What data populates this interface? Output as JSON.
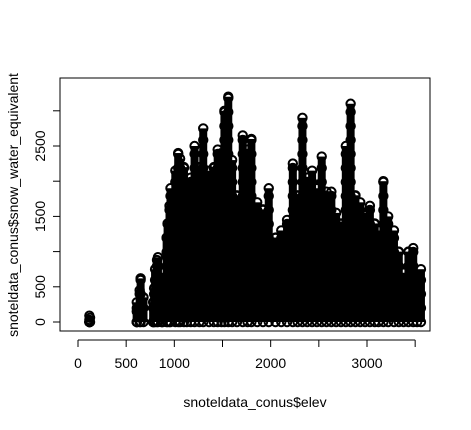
{
  "chart_data": {
    "type": "scatter",
    "title": "",
    "xlabel": "snoteldata_conus$elev",
    "ylabel": "snoteldata_conus$snow_water_equivalent",
    "xlim": [
      0,
      3650
    ],
    "ylim": [
      0,
      3200
    ],
    "x_ticks": [
      0,
      500,
      1000,
      1500,
      2000,
      2500,
      3000,
      3500
    ],
    "x_tick_labels": [
      "0",
      "500",
      "1000",
      "",
      "2000",
      "",
      "3000",
      ""
    ],
    "y_ticks": [
      0,
      500,
      1000,
      1500,
      2000,
      2500,
      3000
    ],
    "y_tick_labels": [
      "0",
      "500",
      "",
      "1500",
      "",
      "2500",
      ""
    ],
    "grid": false,
    "marker": "open-circle",
    "color": "#000000",
    "series": [
      {
        "points": [
          [
            118,
            0
          ],
          [
            118,
            30
          ],
          [
            125,
            60
          ],
          [
            118,
            90
          ],
          [
            610,
            0
          ],
          [
            610,
            150
          ],
          [
            610,
            280
          ],
          [
            640,
            450
          ],
          [
            650,
            620
          ],
          [
            680,
            350
          ],
          [
            780,
            0
          ],
          [
            780,
            280
          ],
          [
            790,
            480
          ],
          [
            800,
            750
          ],
          [
            820,
            880
          ],
          [
            830,
            920
          ],
          [
            870,
            0
          ],
          [
            880,
            700
          ],
          [
            920,
            1200
          ],
          [
            930,
            1400
          ],
          [
            950,
            1650
          ],
          [
            960,
            1900
          ],
          [
            1010,
            2150
          ],
          [
            1040,
            2400
          ],
          [
            1060,
            2320
          ],
          [
            1100,
            2200
          ],
          [
            1130,
            1800
          ],
          [
            1170,
            2050
          ],
          [
            1210,
            2500
          ],
          [
            1260,
            2200
          ],
          [
            1300,
            2750
          ],
          [
            1360,
            2150
          ],
          [
            1410,
            2200
          ],
          [
            1450,
            2450
          ],
          [
            1490,
            2400
          ],
          [
            1520,
            3000
          ],
          [
            1560,
            3200
          ],
          [
            1600,
            2300
          ],
          [
            1650,
            1800
          ],
          [
            1710,
            2650
          ],
          [
            1760,
            2450
          ],
          [
            1800,
            2600
          ],
          [
            1860,
            1700
          ],
          [
            1920,
            1600
          ],
          [
            1980,
            1900
          ],
          [
            2050,
            1200
          ],
          [
            2110,
            1300
          ],
          [
            2170,
            1450
          ],
          [
            2230,
            2250
          ],
          [
            2280,
            1800
          ],
          [
            2330,
            2900
          ],
          [
            2380,
            2050
          ],
          [
            2430,
            2150
          ],
          [
            2480,
            1900
          ],
          [
            2530,
            2350
          ],
          [
            2580,
            1850
          ],
          [
            2630,
            1850
          ],
          [
            2680,
            1550
          ],
          [
            2730,
            1400
          ],
          [
            2780,
            2500
          ],
          [
            2830,
            3100
          ],
          [
            2880,
            1800
          ],
          [
            2930,
            1700
          ],
          [
            2980,
            1550
          ],
          [
            3030,
            1650
          ],
          [
            3080,
            1400
          ],
          [
            3120,
            1300
          ],
          [
            3170,
            2000
          ],
          [
            3220,
            1500
          ],
          [
            3280,
            1300
          ],
          [
            3330,
            1000
          ],
          [
            3380,
            700
          ],
          [
            3430,
            1000
          ],
          [
            3480,
            1050
          ],
          [
            3520,
            600
          ],
          [
            3560,
            750
          ]
        ]
      }
    ]
  }
}
